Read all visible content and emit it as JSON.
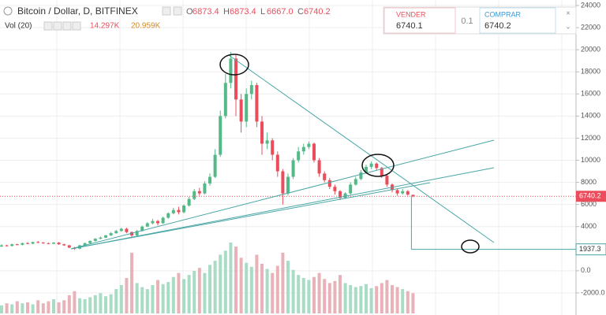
{
  "chart_data": {
    "type": "candlestick",
    "title": "Bitcoin / Dollar, D, BITFINEX",
    "ohlc_legend": [
      {
        "label": "O",
        "value": 6873.4
      },
      {
        "label": "H",
        "value": 6873.4
      },
      {
        "label": "L",
        "value": 6667,
        "value_label": "6667.0"
      },
      {
        "label": "C",
        "value": 6740.2
      }
    ],
    "volume_legend": {
      "label": "Vol (20)",
      "values": [
        "14.297K",
        "20.959K"
      ]
    },
    "order_panel": {
      "sell": {
        "label": "VENDER",
        "price": 6740.1
      },
      "quantity": 0.1,
      "buy": {
        "label": "COMPRAR",
        "price": 6740.2
      }
    },
    "up_color": "#53b987",
    "down_color": "#eb4d5c",
    "volume_color": "#e8b2b8",
    "ylim": [
      -4000,
      24500
    ],
    "yticks": [
      24000,
      22000,
      20000,
      18000,
      16000,
      14000,
      12000,
      10000,
      8000,
      6000,
      4000,
      {
        "value": 0,
        "label": "0.0"
      },
      {
        "value": -2000,
        "label": "-2000.0"
      }
    ],
    "grid": true,
    "price_line": 1937.3,
    "open": [
      2200,
      2300,
      2250,
      2400,
      2350,
      2500,
      2450,
      2600,
      2550,
      2500,
      2450,
      2550,
      2400,
      2300,
      2100,
      2000,
      2300,
      2500,
      2700,
      2900,
      3000,
      3200,
      3400,
      3600,
      3800,
      3500,
      3200,
      3600,
      4000,
      4300,
      4500,
      4300,
      4800,
      5200,
      5500,
      5300,
      5900,
      6500,
      7200,
      7000,
      7900,
      8500,
      10500,
      14000,
      17000,
      19200,
      15500,
      13500,
      16000,
      16800,
      13500,
      11500,
      11800,
      10500,
      9000,
      7000,
      8500,
      10000,
      10800,
      11200,
      11500,
      10000,
      8800,
      8200,
      7600,
      7200,
      6600,
      7000,
      7800,
      8300,
      8900,
      9400,
      9700,
      9300,
      8600,
      7800,
      7300,
      7000,
      7200,
      6873.4
    ],
    "high": [
      2400,
      2350,
      2450,
      2450,
      2550,
      2600,
      2650,
      2700,
      2600,
      2550,
      2600,
      2600,
      2450,
      2350,
      2150,
      2350,
      2550,
      2750,
      2950,
      3100,
      3250,
      3500,
      3700,
      3900,
      3900,
      3550,
      3700,
      4100,
      4400,
      4700,
      4600,
      4900,
      5300,
      5700,
      5800,
      6000,
      6700,
      7400,
      7500,
      8100,
      8800,
      11000,
      14500,
      17800,
      19800,
      19500,
      16000,
      16500,
      17200,
      17000,
      14000,
      12500,
      12000,
      10800,
      9200,
      8800,
      10200,
      11200,
      11500,
      11700,
      11600,
      10200,
      9000,
      8400,
      7800,
      7300,
      7100,
      8000,
      8500,
      9100,
      9600,
      9900,
      9800,
      9400,
      8700,
      7900,
      7400,
      7400,
      7300,
      6873.4
    ],
    "low": [
      2150,
      2200,
      2200,
      2300,
      2300,
      2400,
      2400,
      2500,
      2450,
      2400,
      2400,
      2350,
      2250,
      2050,
      1900,
      1950,
      2250,
      2450,
      2650,
      2850,
      2950,
      3150,
      3350,
      3550,
      3400,
      3000,
      3150,
      3550,
      3950,
      4200,
      4100,
      4250,
      4700,
      5100,
      5100,
      5200,
      5800,
      6400,
      6800,
      6900,
      7700,
      8400,
      10300,
      13800,
      16500,
      14000,
      12500,
      13000,
      15500,
      13000,
      10500,
      11000,
      10000,
      8500,
      6000,
      6800,
      8300,
      9800,
      10500,
      11000,
      9800,
      8500,
      8000,
      7400,
      6900,
      6400,
      6500,
      6900,
      7700,
      8200,
      8800,
      9200,
      9100,
      8400,
      7600,
      7100,
      6800,
      6900,
      6800,
      6667
    ],
    "close": [
      2300,
      2250,
      2400,
      2350,
      2500,
      2450,
      2600,
      2550,
      2500,
      2450,
      2550,
      2400,
      2300,
      2100,
      2000,
      2300,
      2500,
      2700,
      2900,
      3000,
      3200,
      3400,
      3600,
      3800,
      3500,
      3200,
      3600,
      4000,
      4300,
      4500,
      4300,
      4800,
      5200,
      5500,
      5300,
      5900,
      6500,
      7200,
      7000,
      7900,
      8500,
      10500,
      14000,
      17000,
      19200,
      15500,
      13500,
      16000,
      16800,
      13500,
      11500,
      11800,
      10500,
      9000,
      7000,
      8500,
      10000,
      10800,
      11200,
      11500,
      10000,
      8800,
      8200,
      7600,
      7200,
      6600,
      7000,
      7800,
      8300,
      8900,
      9400,
      9700,
      9300,
      8600,
      7800,
      7300,
      7000,
      7200,
      6900,
      6740.2
    ],
    "volume": [
      8,
      10,
      9,
      12,
      10,
      11,
      9,
      13,
      10,
      12,
      14,
      11,
      13,
      18,
      22,
      15,
      14,
      16,
      18,
      20,
      17,
      19,
      24,
      28,
      35,
      60,
      30,
      26,
      24,
      28,
      33,
      29,
      31,
      36,
      40,
      34,
      38,
      42,
      45,
      40,
      48,
      52,
      58,
      62,
      70,
      66,
      55,
      50,
      46,
      58,
      49,
      44,
      40,
      47,
      60,
      52,
      43,
      38,
      35,
      33,
      36,
      40,
      34,
      30,
      32,
      38,
      30,
      28,
      26,
      27,
      29,
      25,
      27,
      30,
      33,
      28,
      26,
      24,
      22,
      20
    ]
  }
}
